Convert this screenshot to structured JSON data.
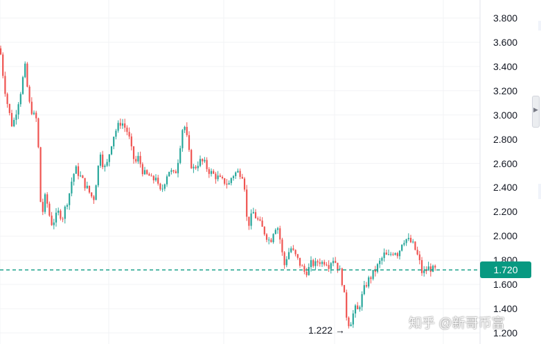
{
  "chart_data": {
    "type": "candlestick",
    "y_ticks": [
      "3.800",
      "3.600",
      "3.400",
      "3.200",
      "3.000",
      "2.800",
      "2.600",
      "2.400",
      "2.200",
      "2.000",
      "1.800",
      "1.600",
      "1.400",
      "1.200"
    ],
    "ylim": [
      1.2,
      3.9
    ],
    "grid": true,
    "current_price": "1.720",
    "low_label": "1.222 →",
    "close_path": [
      [
        0,
        3.55
      ],
      [
        6,
        3.25
      ],
      [
        12,
        3.05
      ],
      [
        18,
        2.9
      ],
      [
        24,
        3.05
      ],
      [
        30,
        3.2
      ],
      [
        36,
        3.4
      ],
      [
        42,
        3.1
      ],
      [
        48,
        3.0
      ],
      [
        54,
        2.95
      ],
      [
        58,
        2.3
      ],
      [
        62,
        2.2
      ],
      [
        66,
        2.35
      ],
      [
        70,
        2.2
      ],
      [
        75,
        2.1
      ],
      [
        80,
        2.15
      ],
      [
        85,
        2.2
      ],
      [
        90,
        2.15
      ],
      [
        95,
        2.25
      ],
      [
        100,
        2.35
      ],
      [
        105,
        2.5
      ],
      [
        110,
        2.55
      ],
      [
        115,
        2.5
      ],
      [
        120,
        2.45
      ],
      [
        125,
        2.4
      ],
      [
        130,
        2.35
      ],
      [
        135,
        2.3
      ],
      [
        140,
        2.5
      ],
      [
        145,
        2.7
      ],
      [
        150,
        2.55
      ],
      [
        155,
        2.6
      ],
      [
        160,
        2.75
      ],
      [
        165,
        2.85
      ],
      [
        170,
        2.9
      ],
      [
        175,
        2.95
      ],
      [
        180,
        2.9
      ],
      [
        185,
        2.85
      ],
      [
        190,
        2.7
      ],
      [
        195,
        2.6
      ],
      [
        200,
        2.65
      ],
      [
        205,
        2.55
      ],
      [
        210,
        2.5
      ],
      [
        215,
        2.5
      ],
      [
        220,
        2.45
      ],
      [
        225,
        2.5
      ],
      [
        230,
        2.35
      ],
      [
        235,
        2.4
      ],
      [
        240,
        2.5
      ],
      [
        245,
        2.55
      ],
      [
        250,
        2.5
      ],
      [
        255,
        2.55
      ],
      [
        260,
        2.75
      ],
      [
        265,
        2.95
      ],
      [
        270,
        2.8
      ],
      [
        275,
        2.6
      ],
      [
        280,
        2.55
      ],
      [
        285,
        2.6
      ],
      [
        290,
        2.62
      ],
      [
        295,
        2.6
      ],
      [
        300,
        2.55
      ],
      [
        305,
        2.52
      ],
      [
        310,
        2.5
      ],
      [
        315,
        2.48
      ],
      [
        320,
        2.45
      ],
      [
        325,
        2.45
      ],
      [
        330,
        2.42
      ],
      [
        335,
        2.5
      ],
      [
        340,
        2.52
      ],
      [
        345,
        2.53
      ],
      [
        352,
        2.5
      ],
      [
        356,
        2.15
      ],
      [
        360,
        2.1
      ],
      [
        365,
        2.2
      ],
      [
        370,
        2.15
      ],
      [
        375,
        2.1
      ],
      [
        380,
        2.05
      ],
      [
        385,
        2.0
      ],
      [
        390,
        1.95
      ],
      [
        395,
        2.05
      ],
      [
        400,
        2.1
      ],
      [
        405,
        1.95
      ],
      [
        410,
        1.75
      ],
      [
        415,
        1.85
      ],
      [
        420,
        1.9
      ],
      [
        425,
        1.85
      ],
      [
        430,
        1.8
      ],
      [
        435,
        1.75
      ],
      [
        440,
        1.7
      ],
      [
        445,
        1.72
      ],
      [
        450,
        1.78
      ],
      [
        455,
        1.76
      ],
      [
        460,
        1.8
      ],
      [
        465,
        1.78
      ],
      [
        470,
        1.8
      ],
      [
        475,
        1.76
      ],
      [
        480,
        1.82
      ],
      [
        485,
        1.78
      ],
      [
        490,
        1.72
      ],
      [
        495,
        1.6
      ],
      [
        500,
        1.35
      ],
      [
        503,
        1.28
      ],
      [
        507,
        1.3
      ],
      [
        512,
        1.4
      ],
      [
        516,
        1.38
      ],
      [
        520,
        1.45
      ],
      [
        525,
        1.55
      ],
      [
        530,
        1.62
      ],
      [
        535,
        1.66
      ],
      [
        540,
        1.7
      ],
      [
        545,
        1.75
      ],
      [
        550,
        1.8
      ],
      [
        555,
        1.85
      ],
      [
        560,
        1.82
      ],
      [
        565,
        1.86
      ],
      [
        570,
        1.88
      ],
      [
        575,
        1.85
      ],
      [
        580,
        1.95
      ],
      [
        585,
        1.98
      ],
      [
        590,
        1.96
      ],
      [
        595,
        1.94
      ],
      [
        600,
        1.88
      ],
      [
        605,
        1.8
      ],
      [
        610,
        1.68
      ],
      [
        615,
        1.72
      ],
      [
        620,
        1.74
      ],
      [
        625,
        1.72
      ],
      [
        630,
        1.72
      ]
    ]
  },
  "colors": {
    "up": "#26a69a",
    "down": "#ef5350",
    "price_line": "#089981",
    "price_tag_bg": "#089981",
    "grid": "#f2f3f5"
  },
  "watermark": "知乎 @新哥币富"
}
